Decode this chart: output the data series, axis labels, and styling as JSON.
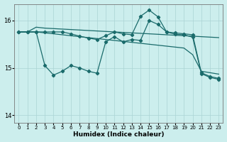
{
  "xlabel": "Humidex (Indice chaleur)",
  "bg_color": "#cceeed",
  "grid_color": "#aad4d4",
  "line_color": "#1a6b6b",
  "xlim": [
    -0.5,
    23.5
  ],
  "ylim": [
    13.85,
    16.35
  ],
  "yticks": [
    14,
    15,
    16
  ],
  "xticks": [
    0,
    1,
    2,
    3,
    4,
    5,
    6,
    7,
    8,
    9,
    10,
    11,
    12,
    13,
    14,
    15,
    16,
    17,
    18,
    19,
    20,
    21,
    22,
    23
  ],
  "line1_y": [
    15.76,
    15.76,
    15.86,
    15.84,
    15.83,
    15.82,
    15.81,
    15.8,
    15.79,
    15.78,
    15.77,
    15.76,
    15.75,
    15.74,
    15.73,
    15.72,
    15.71,
    15.7,
    15.69,
    15.68,
    15.67,
    15.66,
    15.65,
    15.64
  ],
  "line2_y": [
    15.76,
    15.76,
    15.76,
    15.74,
    15.72,
    15.7,
    15.68,
    15.66,
    15.64,
    15.62,
    15.6,
    15.58,
    15.56,
    15.54,
    15.52,
    15.5,
    15.48,
    15.46,
    15.44,
    15.42,
    15.28,
    14.93,
    14.9,
    14.87
  ],
  "line3_y": [
    15.76,
    15.76,
    15.76,
    15.76,
    15.76,
    15.76,
    15.72,
    15.67,
    15.63,
    15.6,
    15.68,
    15.76,
    15.72,
    15.7,
    16.09,
    16.22,
    16.08,
    15.76,
    15.74,
    15.72,
    15.7,
    14.9,
    14.82,
    14.78
  ],
  "line4_y": [
    15.76,
    15.76,
    15.76,
    15.05,
    14.85,
    14.93,
    15.05,
    15.0,
    14.93,
    14.89,
    15.55,
    15.66,
    15.55,
    15.6,
    15.58,
    16.0,
    15.92,
    15.76,
    15.71,
    15.7,
    15.65,
    14.88,
    14.8,
    14.76
  ]
}
